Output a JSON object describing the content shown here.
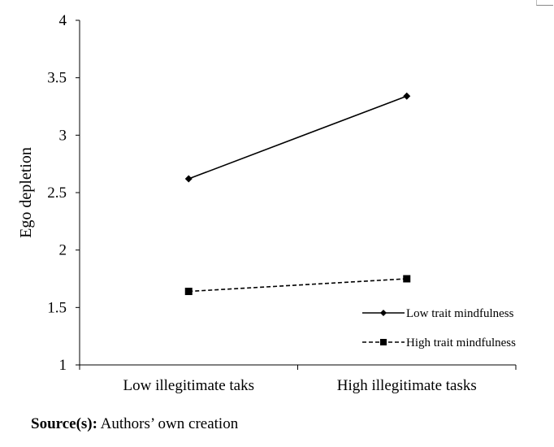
{
  "chart_data": {
    "type": "line",
    "categories": [
      "Low illegitimate taks",
      "High illegitimate tasks"
    ],
    "series": [
      {
        "name": "Low trait mindfulness",
        "values": [
          2.62,
          3.34
        ],
        "line_style": "solid",
        "marker": "diamond",
        "color": "#000000"
      },
      {
        "name": "High trait mindfulness",
        "values": [
          1.64,
          1.75
        ],
        "line_style": "dashed",
        "marker": "square",
        "color": "#000000"
      }
    ],
    "title": "",
    "xlabel": "",
    "ylabel": "Ego depletion",
    "ylim": [
      1,
      4
    ],
    "yticks": [
      "1",
      "1.5",
      "2",
      "2.5",
      "3",
      "3.5",
      "4"
    ],
    "grid": false,
    "legend_position": "bottom-right"
  },
  "footer": {
    "source_label": "Source(s):",
    "source_text": "Authors’ own creation"
  }
}
